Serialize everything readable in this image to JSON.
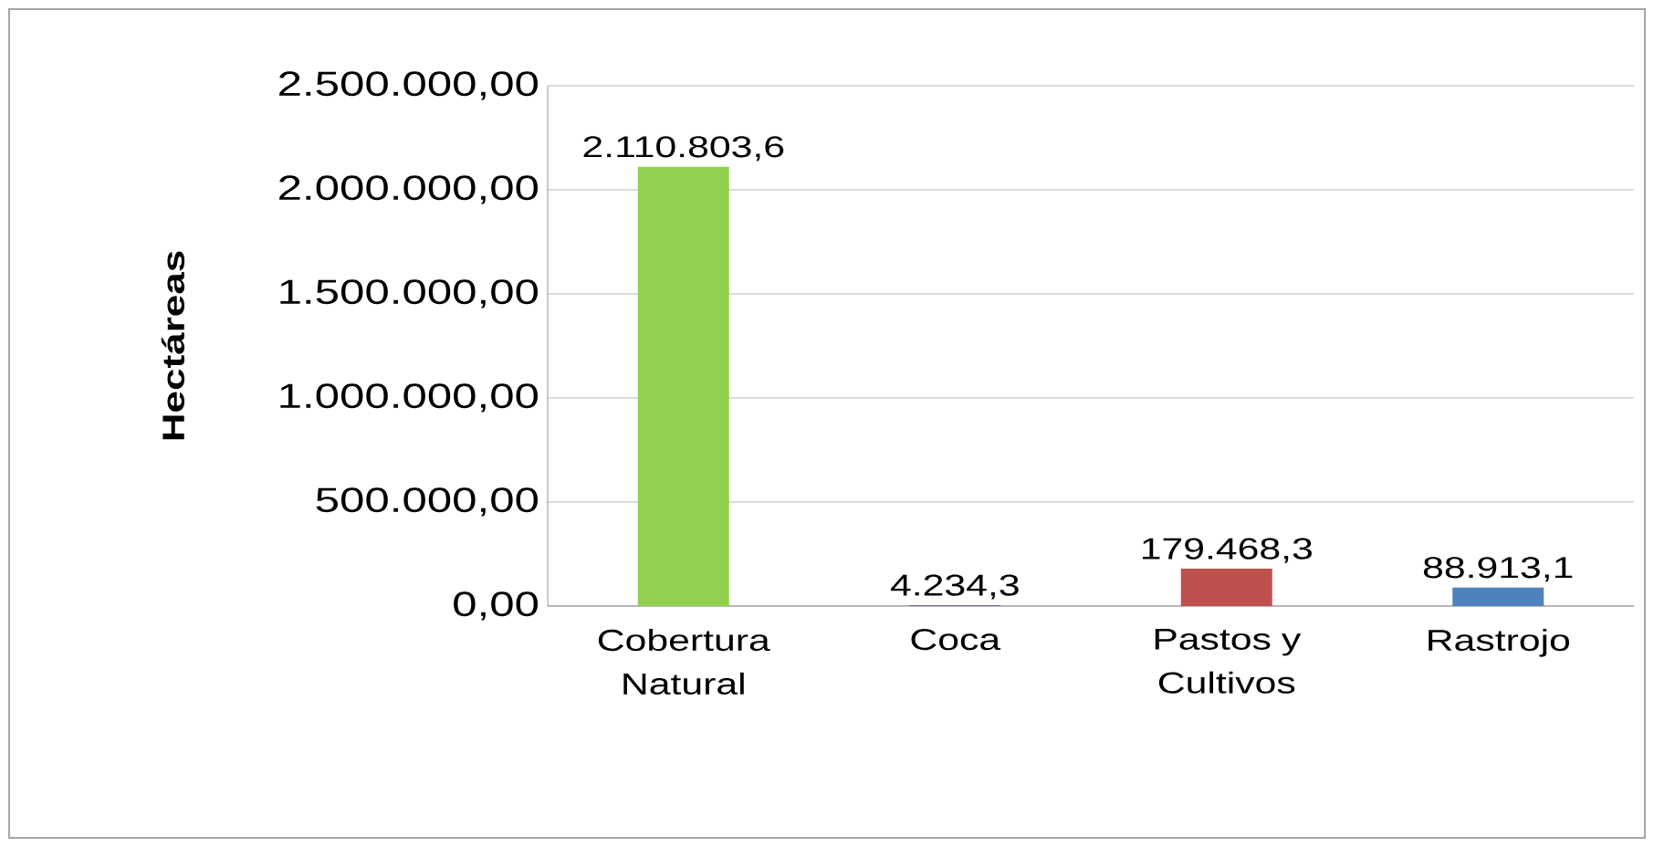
{
  "chart_data": {
    "type": "bar",
    "ylabel": "Hectáreas",
    "categories": [
      "Cobertura Natural",
      "Coca",
      "Pastos y Cultivos",
      "Rastrojo"
    ],
    "values": [
      2110803.6,
      4234.3,
      179468.3,
      88913.1
    ],
    "value_labels": [
      "2.110.803,6",
      "4.234,3",
      "179.468,3",
      "88.913,1"
    ],
    "colors": [
      "#92d050",
      "#8064a2",
      "#c0504d",
      "#4f81bd"
    ],
    "ylim": [
      0,
      2500000
    ],
    "yticks": [
      {
        "value": 0,
        "label": "0,00"
      },
      {
        "value": 500000,
        "label": "500.000,00"
      },
      {
        "value": 1000000,
        "label": "1.000.000,00"
      },
      {
        "value": 1500000,
        "label": "1.500.000,00"
      },
      {
        "value": 2000000,
        "label": "2.000.000,00"
      },
      {
        "value": 2500000,
        "label": "2.500.000,00"
      }
    ],
    "grid": "y",
    "legend": false
  }
}
